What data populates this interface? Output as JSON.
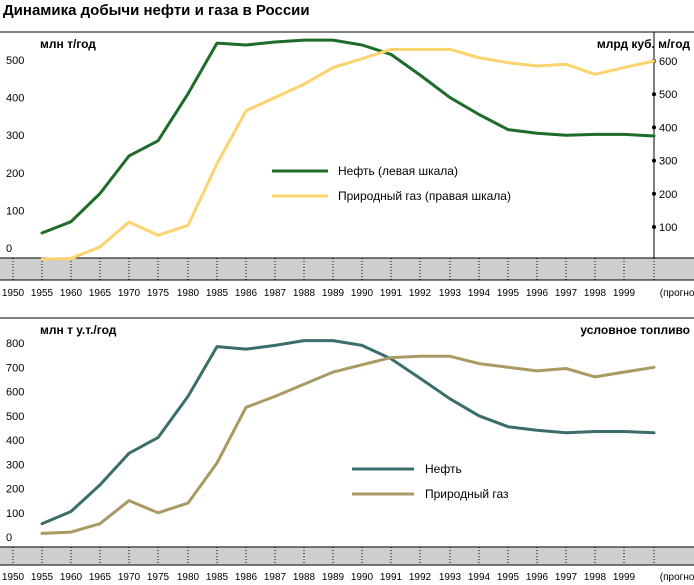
{
  "title": "Динамика добычи нефти и газа в России",
  "chart_data": [
    {
      "type": "line",
      "left_axis_label": "млн т/год",
      "right_axis_label": "млрд куб. м/год",
      "x_categories": [
        "1950",
        "1955",
        "1960",
        "1965",
        "1970",
        "1975",
        "1980",
        "1985",
        "1986",
        "1987",
        "1988",
        "1989",
        "1990",
        "1991",
        "1992",
        "1993",
        "1994",
        "1995",
        "1996",
        "1997",
        "1998",
        "1999",
        "(прогноз)"
      ],
      "left_ticks": [
        "0",
        "100",
        "200",
        "300",
        "400",
        "500"
      ],
      "right_ticks": [
        "100",
        "200",
        "300",
        "400",
        "500",
        "600"
      ],
      "ylim_left": [
        0,
        550
      ],
      "ylim_right": [
        0,
        660
      ],
      "grid": false,
      "legend_position": "center-right",
      "series": [
        {
          "name": "Нефть (левая шкала)",
          "axis": "left",
          "color": "#1e6b2a",
          "x": [
            "1955",
            "1960",
            "1965",
            "1970",
            "1975",
            "1980",
            "1985",
            "1986",
            "1987",
            "1988",
            "1989",
            "1990",
            "1991",
            "1992",
            "1993",
            "1994",
            "1995",
            "1996",
            "1997",
            "1998",
            "1999",
            "(прогноз)"
          ],
          "values": [
            40,
            70,
            145,
            245,
            285,
            410,
            545,
            540,
            548,
            553,
            553,
            540,
            515,
            460,
            400,
            355,
            315,
            305,
            300,
            302,
            302,
            298
          ]
        },
        {
          "name": "Природный газ (правая шкала)",
          "axis": "right",
          "color": "#fcd36e",
          "x": [
            "1955",
            "1960",
            "1965",
            "1970",
            "1975",
            "1980",
            "1985",
            "1986",
            "1987",
            "1988",
            "1989",
            "1990",
            "1991",
            "1992",
            "1993",
            "1994",
            "1995",
            "1996",
            "1997",
            "1998",
            "1999",
            "(прогноз)"
          ],
          "values": [
            3,
            5,
            40,
            115,
            75,
            105,
            290,
            450,
            490,
            530,
            580,
            607,
            635,
            635,
            635,
            610,
            595,
            585,
            590,
            560,
            580,
            600
          ]
        }
      ]
    },
    {
      "type": "line",
      "left_axis_label": "млн т у.т./год",
      "right_axis_label": "условное топливо",
      "x_categories": [
        "1950",
        "1955",
        "1960",
        "1965",
        "1970",
        "1975",
        "1980",
        "1985",
        "1986",
        "1987",
        "1988",
        "1989",
        "1990",
        "1991",
        "1992",
        "1993",
        "1994",
        "1995",
        "1996",
        "1997",
        "1998",
        "1999",
        "(прогноз)"
      ],
      "left_ticks": [
        "0",
        "100",
        "200",
        "300",
        "400",
        "500",
        "600",
        "700",
        "800"
      ],
      "ylim_left": [
        0,
        840
      ],
      "grid": false,
      "legend_position": "center-right",
      "series": [
        {
          "name": "Нефть",
          "axis": "left",
          "color": "#3b6e6a",
          "x": [
            "1955",
            "1960",
            "1965",
            "1970",
            "1975",
            "1980",
            "1985",
            "1986",
            "1987",
            "1988",
            "1989",
            "1990",
            "1991",
            "1992",
            "1993",
            "1994",
            "1995",
            "1996",
            "1997",
            "1998",
            "1999",
            "(прогноз)"
          ],
          "values": [
            55,
            105,
            215,
            345,
            410,
            580,
            785,
            775,
            790,
            810,
            810,
            790,
            735,
            655,
            570,
            500,
            455,
            440,
            430,
            435,
            435,
            430
          ]
        },
        {
          "name": "Природный газ",
          "axis": "left",
          "color": "#a89a62",
          "x": [
            "1955",
            "1960",
            "1965",
            "1970",
            "1975",
            "1980",
            "1985",
            "1986",
            "1987",
            "1988",
            "1989",
            "1990",
            "1991",
            "1992",
            "1993",
            "1994",
            "1995",
            "1996",
            "1997",
            "1998",
            "1999",
            "(прогноз)"
          ],
          "values": [
            15,
            20,
            55,
            150,
            100,
            140,
            305,
            535,
            580,
            630,
            680,
            710,
            740,
            745,
            745,
            715,
            700,
            685,
            695,
            660,
            680,
            700
          ]
        }
      ]
    }
  ]
}
